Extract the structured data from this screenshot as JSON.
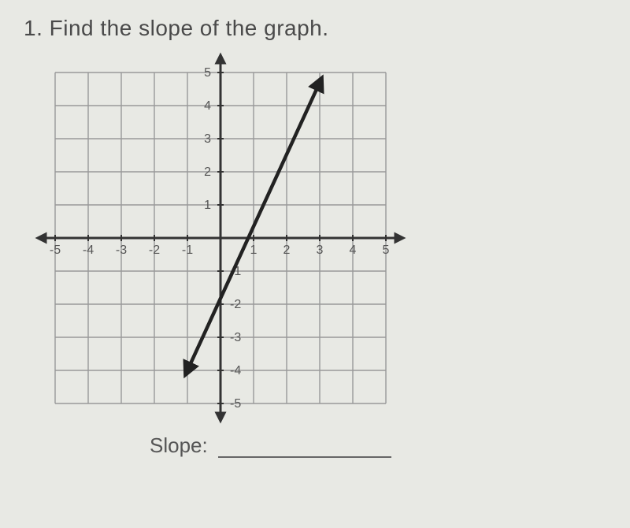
{
  "question": {
    "number": "1.",
    "text": "Find the slope of the graph."
  },
  "graph": {
    "type": "line",
    "xlim": [
      -5,
      5
    ],
    "ylim": [
      -5,
      5
    ],
    "xtick_step": 1,
    "ytick_step": 1,
    "xticks_labeled": [
      -5,
      -4,
      -3,
      -2,
      -1,
      1,
      2,
      3,
      4,
      5
    ],
    "yticks_labeled": [
      -5,
      -4,
      -3,
      -2,
      -1,
      1,
      2,
      3,
      4,
      5
    ],
    "grid_color": "#999",
    "grid_width": 1.4,
    "axis_color": "#333",
    "axis_width": 3,
    "background_color": "#e8e9e4",
    "tick_label_fontsize": 16,
    "line": {
      "points": [
        [
          -1,
          -4
        ],
        [
          3,
          4.7
        ]
      ],
      "color": "#222",
      "width": 4.5,
      "arrows": "both"
    }
  },
  "answer": {
    "label": "Slope:"
  }
}
